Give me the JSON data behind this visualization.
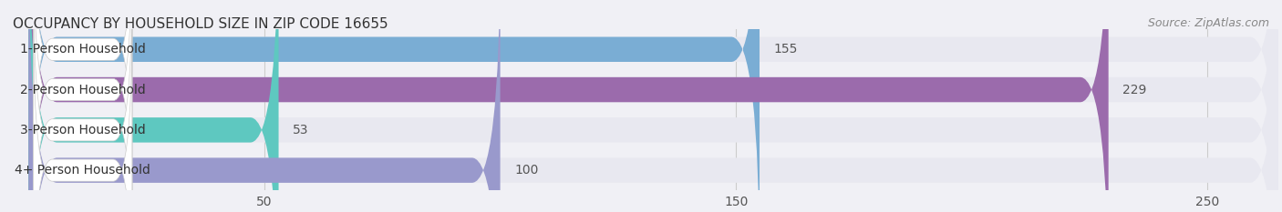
{
  "title": "OCCUPANCY BY HOUSEHOLD SIZE IN ZIP CODE 16655",
  "source": "Source: ZipAtlas.com",
  "categories": [
    "1-Person Household",
    "2-Person Household",
    "3-Person Household",
    "4+ Person Household"
  ],
  "values": [
    155,
    229,
    53,
    100
  ],
  "bar_colors": [
    "#7aadd4",
    "#9b6bac",
    "#5ec8c0",
    "#9999cc"
  ],
  "label_bg_color": "#ffffff",
  "background_color": "#f0f0f5",
  "bar_bg_color": "#e8e8f0",
  "xlim": [
    0,
    265
  ],
  "xticks": [
    50,
    150,
    250
  ],
  "title_fontsize": 11,
  "source_fontsize": 9,
  "bar_height": 0.62,
  "label_fontsize": 10,
  "value_fontsize": 10
}
